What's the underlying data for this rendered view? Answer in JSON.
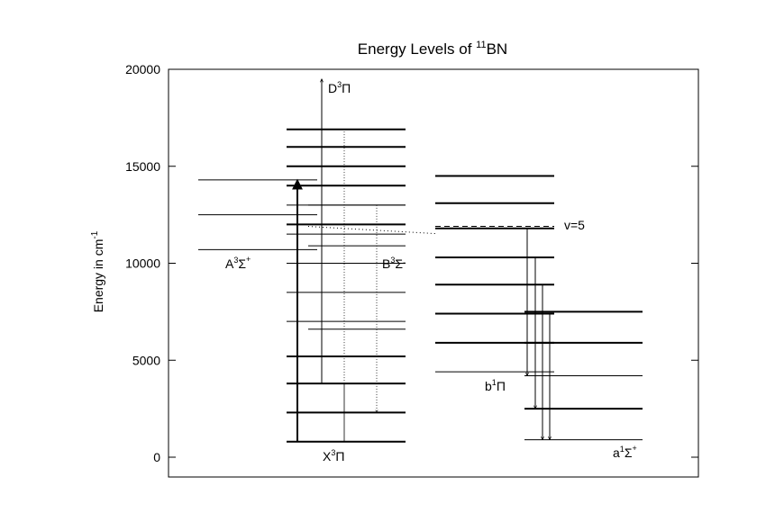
{
  "title": {
    "prefix": "Energy Levels of ",
    "isotope": "11",
    "molecule": "BN"
  },
  "y_axis": {
    "label_main": "Energy in cm",
    "label_exponent": "-1",
    "min": 0,
    "max": 20000,
    "ticks": [
      {
        "value": 0,
        "label": "0"
      },
      {
        "value": 5000,
        "label": "5000"
      },
      {
        "value": 10000,
        "label": "10000"
      },
      {
        "value": 15000,
        "label": "15000"
      },
      {
        "value": 20000,
        "label": "20000"
      }
    ]
  },
  "states": {
    "A": {
      "letter": "A",
      "mult": "3",
      "sym": "Σ",
      "parity": "+"
    },
    "X": {
      "letter": "X",
      "mult": "3",
      "sym": "Π",
      "parity": ""
    },
    "D": {
      "letter": "D",
      "mult": "3",
      "sym": "Π",
      "parity": ""
    },
    "B": {
      "letter": "B",
      "mult": "3",
      "sym": "Σ",
      "parity": "-"
    },
    "b": {
      "letter": "b",
      "mult": "1",
      "sym": "Π",
      "parity": ""
    },
    "a": {
      "letter": "a",
      "mult": "1",
      "sym": "Σ",
      "parity": "+"
    }
  },
  "v_label": "v=5",
  "levels": {
    "A": [
      10700,
      12500,
      14300
    ],
    "X": [
      800,
      2300,
      3800,
      5200,
      7000,
      8500,
      10000,
      11500,
      12000,
      13000,
      14000,
      15000,
      16000,
      16900
    ],
    "B": [
      6600,
      10900,
      12000,
      13000
    ],
    "a": [
      900,
      2500,
      4200,
      5900,
      7500
    ],
    "b": [
      4400,
      5900,
      7400,
      8900,
      10300,
      11800,
      13100,
      14500
    ]
  },
  "arrows": {
    "X_to_A": {
      "from": 800,
      "to": 14300
    },
    "X_to_D": {
      "from": 3800,
      "to": 19500
    },
    "b_to_a": [
      {
        "from": 11800,
        "to": 4200
      },
      {
        "from": 10300,
        "to": 2500
      },
      {
        "from": 8900,
        "to": 900
      },
      {
        "from": 7400,
        "to": 900
      }
    ]
  }
}
